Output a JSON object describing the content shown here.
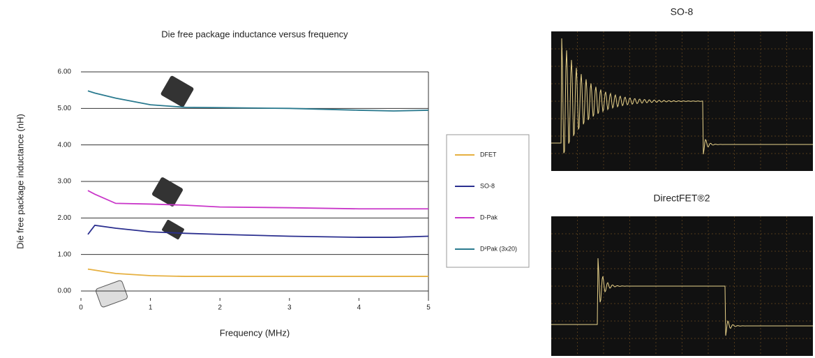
{
  "chart_data": {
    "type": "line",
    "title": "Die free package inductance versus frequency",
    "xlabel": "Frequency (MHz)",
    "ylabel": "Die free package inductance (nH)",
    "x": [
      0.1,
      0.2,
      0.5,
      1,
      1.5,
      2,
      3,
      4,
      4.5,
      5
    ],
    "series": [
      {
        "name": "DFET",
        "color": "#e6b040",
        "values": [
          0.6,
          0.57,
          0.48,
          0.42,
          0.4,
          0.4,
          0.4,
          0.4,
          0.4,
          0.4
        ]
      },
      {
        "name": "SO-8",
        "color": "#2b2f8f",
        "values": [
          1.55,
          1.8,
          1.72,
          1.62,
          1.58,
          1.55,
          1.5,
          1.47,
          1.47,
          1.5
        ]
      },
      {
        "name": "D-Pak",
        "color": "#c936c9",
        "values": [
          2.75,
          2.65,
          2.4,
          2.38,
          2.35,
          2.3,
          2.28,
          2.25,
          2.25,
          2.25
        ]
      },
      {
        "name": "D²Pak (3x20)",
        "color": "#2a7a8f",
        "values": [
          5.48,
          5.42,
          5.28,
          5.1,
          5.03,
          5.02,
          5.0,
          4.95,
          4.93,
          4.95
        ]
      }
    ],
    "xlim": [
      0,
      5
    ],
    "xticks": [
      0,
      1,
      2,
      3,
      4,
      5
    ],
    "ylim": [
      0,
      6
    ],
    "yticks": [
      {
        "value": 0,
        "label": "0.00"
      },
      {
        "value": 1,
        "label": "1.00"
      },
      {
        "value": 2,
        "label": "2.00"
      },
      {
        "value": 3,
        "label": "3.00"
      },
      {
        "value": 4,
        "label": "4.00"
      },
      {
        "value": 5,
        "label": "5.00"
      },
      {
        "value": 6,
        "label": "6.00"
      }
    ],
    "grid": true
  },
  "scopes": [
    {
      "title": "SO-8"
    },
    {
      "title": "DirectFET®2"
    }
  ]
}
